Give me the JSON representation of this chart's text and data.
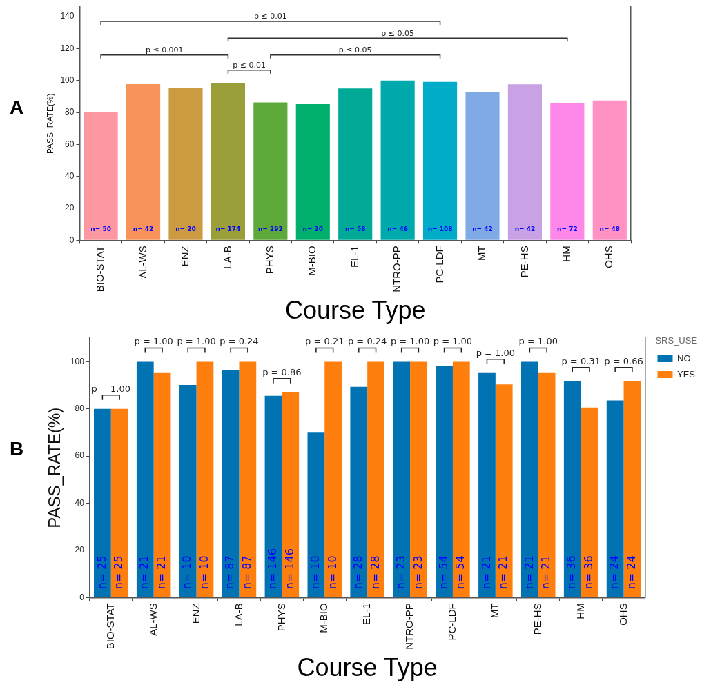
{
  "chart_data": [
    {
      "type": "bar",
      "title": "A",
      "xlabel": "Course Type",
      "ylabel": "PASS_RATE(%)",
      "categories": [
        "BIO-STAT",
        "AL-WS",
        "ENZ",
        "LA-B",
        "PHYS",
        "M-BIO",
        "EL-1",
        "NTRO-PP",
        "PC-LDF",
        "MT",
        "PE-HS",
        "HM",
        "OHS"
      ],
      "values": [
        80,
        97.7,
        95.3,
        98.3,
        86.3,
        85.2,
        95,
        100,
        99.1,
        92.9,
        97.6,
        86.1,
        87.5
      ],
      "colors": [
        "#fe98a0",
        "#f8935c",
        "#cc9a40",
        "#9a9f3a",
        "#5daa3b",
        "#00af6c",
        "#00aa97",
        "#00aaac",
        "#00acc8",
        "#80aae6",
        "#c9a2e6",
        "#fe88e9",
        "#ff92c2"
      ],
      "ylim": [
        0,
        146
      ],
      "yticks": [
        0,
        20,
        40,
        60,
        80,
        100,
        120,
        140
      ],
      "grid": false,
      "legend": false,
      "annotations": [
        "p ≤ 0.01",
        "p ≤ 0.05",
        "p ≤ 0.001",
        "p ≤ 0.05",
        "p ≤ 0.01",
        "n= 50",
        "n= 42",
        "n= 20",
        "n= 174",
        "n= 292",
        "n= 20",
        "n= 56",
        "n= 46",
        "n= 108",
        "n= 42",
        "n= 42",
        "n= 72",
        "n= 48"
      ]
    },
    {
      "type": "bar",
      "title": "B",
      "xlabel": "Course Type",
      "ylabel": "PASS_RATE(%)",
      "legend_title": "SRS_USE",
      "categories": [
        "BIO-STAT",
        "AL-WS",
        "ENZ",
        "LA-B",
        "PHYS",
        "M-BIO",
        "EL-1",
        "NTRO-PP",
        "PC-LDF",
        "MT",
        "PE-HS",
        "HM",
        "OHS"
      ],
      "series": [
        {
          "name": "NO",
          "color": "#0173b2",
          "values": [
            80,
            100,
            90.2,
            96.5,
            85.6,
            69.9,
            89.4,
            100,
            98.3,
            95.2,
            100,
            91.7,
            83.6
          ]
        },
        {
          "name": "YES",
          "color": "#ff7f0e",
          "values": [
            80,
            95.2,
            100,
            100,
            87,
            100,
            100,
            100,
            100,
            90.4,
            95.2,
            80.6,
            91.7
          ]
        }
      ],
      "ylim": [
        0,
        110
      ],
      "yticks": [
        0,
        20,
        40,
        60,
        80,
        100
      ],
      "grid": false,
      "legend": "top right",
      "annotations": [
        "p = 1.00",
        "p = 1.00",
        "p = 1.00",
        "p = 0.24",
        "p = 0.86",
        "p = 0.21",
        "p = 0.24",
        "p = 1.00",
        "p = 1.00",
        "p = 1.00",
        "p = 1.00",
        "p = 0.31",
        "p = 0.66",
        "n= 25",
        "n= 21",
        "n= 10",
        "n= 87",
        "n= 146",
        "n= 10",
        "n= 28",
        "n= 23",
        "n= 54",
        "n= 21",
        "n= 21",
        "n= 36",
        "n= 24",
        "n= 25",
        "n= 21",
        "n= 10",
        "n= 87",
        "n= 146",
        "n= 10",
        "n= 28",
        "n= 23",
        "n= 54",
        "n= 21",
        "n= 21",
        "n= 36",
        "n= 24"
      ]
    }
  ]
}
